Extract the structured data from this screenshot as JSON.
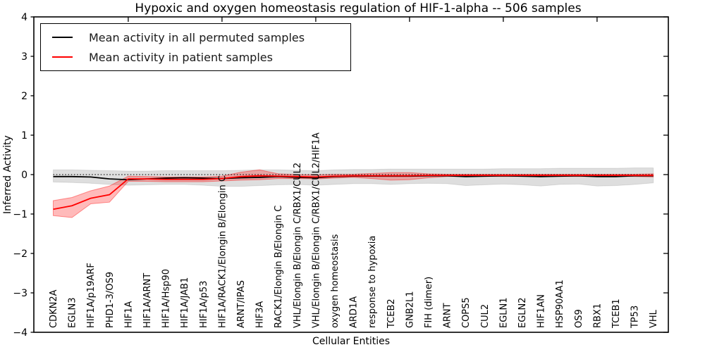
{
  "chart_data": {
    "type": "line",
    "title": "Hypoxic and oxygen homeostasis regulation of HIF-1-alpha -- 506 samples",
    "xlabel": "Cellular Entities",
    "ylabel": "Inferred Activity",
    "ylim": [
      -4,
      4
    ],
    "yticks": [
      4,
      3,
      2,
      1,
      0,
      -1,
      -2,
      -3,
      -4
    ],
    "ytick_labels": [
      "4",
      "3",
      "2",
      "1",
      "0",
      "−1",
      "−2",
      "−3",
      "−4"
    ],
    "grid": false,
    "legend_position": "upper left",
    "zero_reference_line": "dotted black at y=0",
    "x_label_rotation_deg": 90,
    "top_tick_indices": [
      4,
      9,
      14,
      19,
      24,
      29
    ],
    "categories": [
      "CDKN2A",
      "EGLN3",
      "HIF1A/p19ARF",
      "PHD1-3/OS9",
      "HIF1A",
      "HIF1A/ARNT",
      "HIF1A/Hsp90",
      "HIF1A/JAB1",
      "HIF1A/p53",
      "HIF1A/RACK1/Elongin B/Elongin C",
      "ARNT/IPAS",
      "HIF3A",
      "RACK1/Elongin B/Elongin C",
      "VHL/Elongin B/Elongin C/RBX1/CUL2",
      "VHL/Elongin B/Elongin C/RBX1/CUL2/HIF1A",
      "oxygen homeostasis",
      "ARD1A",
      "response to hypoxia",
      "TCEB2",
      "GNB2L1",
      "FIH (dimer)",
      "ARNT",
      "COPS5",
      "CUL2",
      "EGLN1",
      "EGLN2",
      "HIF1AN",
      "HSP90AA1",
      "OS9",
      "RBX1",
      "TCEB1",
      "TP53",
      "VHL"
    ],
    "series": [
      {
        "name": "Mean activity in all permuted samples",
        "color": "#000000",
        "band_color": "rgba(0,0,0,0.13)",
        "band_edge": "rgba(0,0,0,0.10)",
        "values": [
          -0.05,
          -0.05,
          -0.06,
          -0.11,
          -0.13,
          -0.11,
          -0.09,
          -0.08,
          -0.09,
          -0.1,
          -0.08,
          -0.07,
          -0.05,
          -0.07,
          -0.08,
          -0.05,
          -0.04,
          -0.04,
          -0.04,
          -0.04,
          -0.03,
          -0.03,
          -0.05,
          -0.04,
          -0.03,
          -0.04,
          -0.05,
          -0.04,
          -0.03,
          -0.05,
          -0.05,
          -0.03,
          -0.03
        ],
        "band_upper": [
          0.12,
          0.12,
          0.11,
          0.1,
          0.09,
          0.09,
          0.1,
          0.1,
          0.1,
          0.1,
          0.11,
          0.12,
          0.12,
          0.11,
          0.1,
          0.12,
          0.13,
          0.13,
          0.14,
          0.14,
          0.14,
          0.14,
          0.14,
          0.14,
          0.15,
          0.15,
          0.15,
          0.16,
          0.16,
          0.16,
          0.16,
          0.17,
          0.17
        ],
        "band_lower": [
          -0.19,
          -0.2,
          -0.22,
          -0.25,
          -0.27,
          -0.26,
          -0.25,
          -0.25,
          -0.27,
          -0.3,
          -0.3,
          -0.28,
          -0.26,
          -0.25,
          -0.27,
          -0.25,
          -0.23,
          -0.23,
          -0.25,
          -0.23,
          -0.22,
          -0.23,
          -0.28,
          -0.26,
          -0.24,
          -0.26,
          -0.29,
          -0.25,
          -0.24,
          -0.29,
          -0.28,
          -0.25,
          -0.21
        ]
      },
      {
        "name": "Mean activity in patient samples",
        "color": "#ff0000",
        "band_color": "rgba(255,0,0,0.27)",
        "band_edge": "rgba(255,0,0,0.40)",
        "values": [
          -0.88,
          -0.79,
          -0.6,
          -0.51,
          -0.11,
          -0.11,
          -0.12,
          -0.12,
          -0.12,
          -0.1,
          -0.05,
          -0.03,
          -0.04,
          -0.05,
          -0.06,
          -0.04,
          -0.03,
          -0.03,
          -0.03,
          -0.03,
          -0.02,
          -0.02,
          -0.02,
          -0.02,
          -0.02,
          -0.02,
          -0.02,
          -0.02,
          -0.02,
          -0.02,
          -0.02,
          -0.02,
          -0.02
        ],
        "band_upper": [
          -0.66,
          -0.58,
          -0.41,
          -0.29,
          -0.04,
          -0.05,
          -0.06,
          -0.06,
          -0.06,
          -0.04,
          0.06,
          0.12,
          0.02,
          0.0,
          -0.01,
          0.01,
          0.01,
          0.03,
          0.05,
          0.05,
          0.02,
          0.01,
          0.01,
          0.01,
          0.01,
          0.01,
          0.01,
          0.01,
          0.01,
          0.01,
          0.01,
          0.01,
          0.02
        ],
        "band_lower": [
          -1.04,
          -1.09,
          -0.74,
          -0.7,
          -0.17,
          -0.17,
          -0.18,
          -0.18,
          -0.18,
          -0.16,
          -0.14,
          -0.13,
          -0.1,
          -0.1,
          -0.11,
          -0.09,
          -0.07,
          -0.1,
          -0.14,
          -0.13,
          -0.08,
          -0.05,
          -0.05,
          -0.05,
          -0.05,
          -0.05,
          -0.05,
          -0.05,
          -0.05,
          -0.05,
          -0.05,
          -0.05,
          -0.06
        ]
      }
    ]
  },
  "legend": {
    "items": [
      {
        "label": "Mean activity in all permuted samples",
        "color": "#000000"
      },
      {
        "label": "Mean activity in patient samples",
        "color": "#ff0000"
      }
    ]
  }
}
